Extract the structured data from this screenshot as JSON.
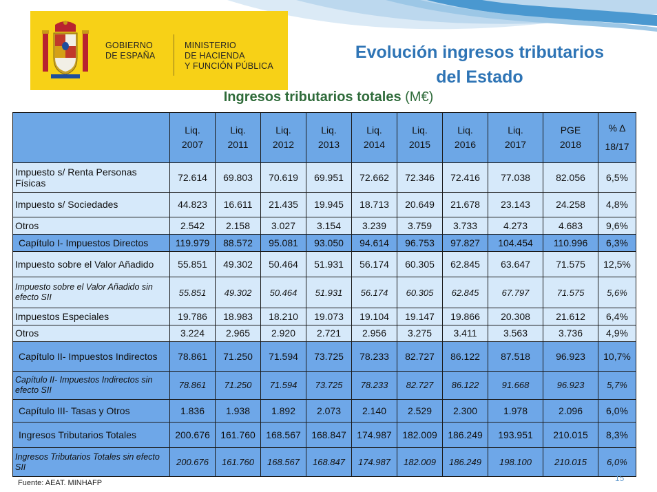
{
  "header": {
    "gov_line1": "GOBIERNO",
    "gov_line2": "DE ESPAÑA",
    "min_line1": "MINISTERIO",
    "min_line2": "DE HACIENDA",
    "min_line3": "Y FUNCIÓN PÚBLICA",
    "title_line1": "Evolución ingresos tributarios",
    "title_line2": "del Estado",
    "subtitle": "Ingresos tributarios totales",
    "subtitle_unit": "(M€)"
  },
  "colors": {
    "title": "#2e74b5",
    "subtitle": "#2f6b3a",
    "logo_bg": "#f7d117",
    "row_light": "#d6e9fa",
    "row_dark": "#6ea7e8"
  },
  "table": {
    "columns": [
      {
        "l1": "Liq.",
        "l2": "2007"
      },
      {
        "l1": "Liq.",
        "l2": "2011"
      },
      {
        "l1": "Liq.",
        "l2": "2012"
      },
      {
        "l1": "Liq.",
        "l2": "2013"
      },
      {
        "l1": "Liq.",
        "l2": "2014"
      },
      {
        "l1": "Liq.",
        "l2": "2015"
      },
      {
        "l1": "Liq.",
        "l2": "2016"
      },
      {
        "l1": "Liq.",
        "l2": "2017"
      },
      {
        "l1": "PGE",
        "l2": "2018"
      },
      {
        "l1": "% Δ",
        "l2": "18/17"
      }
    ],
    "rows": [
      {
        "label": "Impuesto s/ Renta Personas Físicas",
        "style": "light",
        "values": [
          "72.614",
          "69.803",
          "70.619",
          "69.951",
          "72.662",
          "72.346",
          "72.416",
          "77.038",
          "82.056",
          "6,5%"
        ]
      },
      {
        "label": "Impuesto s/ Sociedades",
        "style": "light",
        "values": [
          "44.823",
          "16.611",
          "21.435",
          "19.945",
          "18.713",
          "20.649",
          "21.678",
          "23.143",
          "24.258",
          "4,8%"
        ]
      },
      {
        "label": "Otros",
        "style": "light",
        "values": [
          "2.542",
          "2.158",
          "3.027",
          "3.154",
          "3.239",
          "3.759",
          "3.733",
          "4.273",
          "4.683",
          "9,6%"
        ]
      },
      {
        "label": "Capítulo I- Impuestos Directos",
        "style": "dark",
        "values": [
          "119.979",
          "88.572",
          "95.081",
          "93.050",
          "94.614",
          "96.753",
          "97.827",
          "104.454",
          "110.996",
          "6,3%"
        ]
      },
      {
        "label": "Impuesto sobre el Valor Añadido",
        "style": "light",
        "values": [
          "55.851",
          "49.302",
          "50.464",
          "51.931",
          "56.174",
          "60.305",
          "62.845",
          "63.647",
          "71.575",
          "12,5%"
        ]
      },
      {
        "label": "Impuesto sobre el Valor Añadido sin efecto SII",
        "style": "light",
        "italic": true,
        "values": [
          "55.851",
          "49.302",
          "50.464",
          "51.931",
          "56.174",
          "60.305",
          "62.845",
          "67.797",
          "71.575",
          "5,6%"
        ]
      },
      {
        "label": "Impuestos Especiales",
        "style": "light",
        "values": [
          "19.786",
          "18.983",
          "18.210",
          "19.073",
          "19.104",
          "19.147",
          "19.866",
          "20.308",
          "21.612",
          "6,4%"
        ]
      },
      {
        "label": "Otros",
        "style": "light",
        "values": [
          "3.224",
          "2.965",
          "2.920",
          "2.721",
          "2.956",
          "3.275",
          "3.411",
          "3.563",
          "3.736",
          "4,9%"
        ]
      },
      {
        "label": "Capítulo II- Impuestos Indirectos",
        "style": "dark",
        "values": [
          "78.861",
          "71.250",
          "71.594",
          "73.725",
          "78.233",
          "82.727",
          "86.122",
          "87.518",
          "96.923",
          "10,7%"
        ]
      },
      {
        "label": "Capítulo II- Impuestos Indirectos sin efecto SII",
        "style": "dark",
        "italic": true,
        "values": [
          "78.861",
          "71.250",
          "71.594",
          "73.725",
          "78.233",
          "82.727",
          "86.122",
          "91.668",
          "96.923",
          "5,7%"
        ]
      },
      {
        "label": "Capítulo III- Tasas y Otros",
        "style": "dark",
        "values": [
          "1.836",
          "1.938",
          "1.892",
          "2.073",
          "2.140",
          "2.529",
          "2.300",
          "1.978",
          "2.096",
          "6,0%"
        ]
      },
      {
        "label": "Ingresos Tributarios Totales",
        "style": "dark",
        "values": [
          "200.676",
          "161.760",
          "168.567",
          "168.847",
          "174.987",
          "182.009",
          "186.249",
          "193.951",
          "210.015",
          "8,3%"
        ]
      },
      {
        "label": "Ingresos Tributarios Totales  sin efecto SII",
        "style": "dark",
        "italic": true,
        "values": [
          "200.676",
          "161.760",
          "168.567",
          "168.847",
          "174.987",
          "182.009",
          "186.249",
          "198.100",
          "210.015",
          "6,0%"
        ]
      }
    ]
  },
  "footer": {
    "source": "Fuente: AEAT.  MINHAFP",
    "page_number": "15"
  }
}
